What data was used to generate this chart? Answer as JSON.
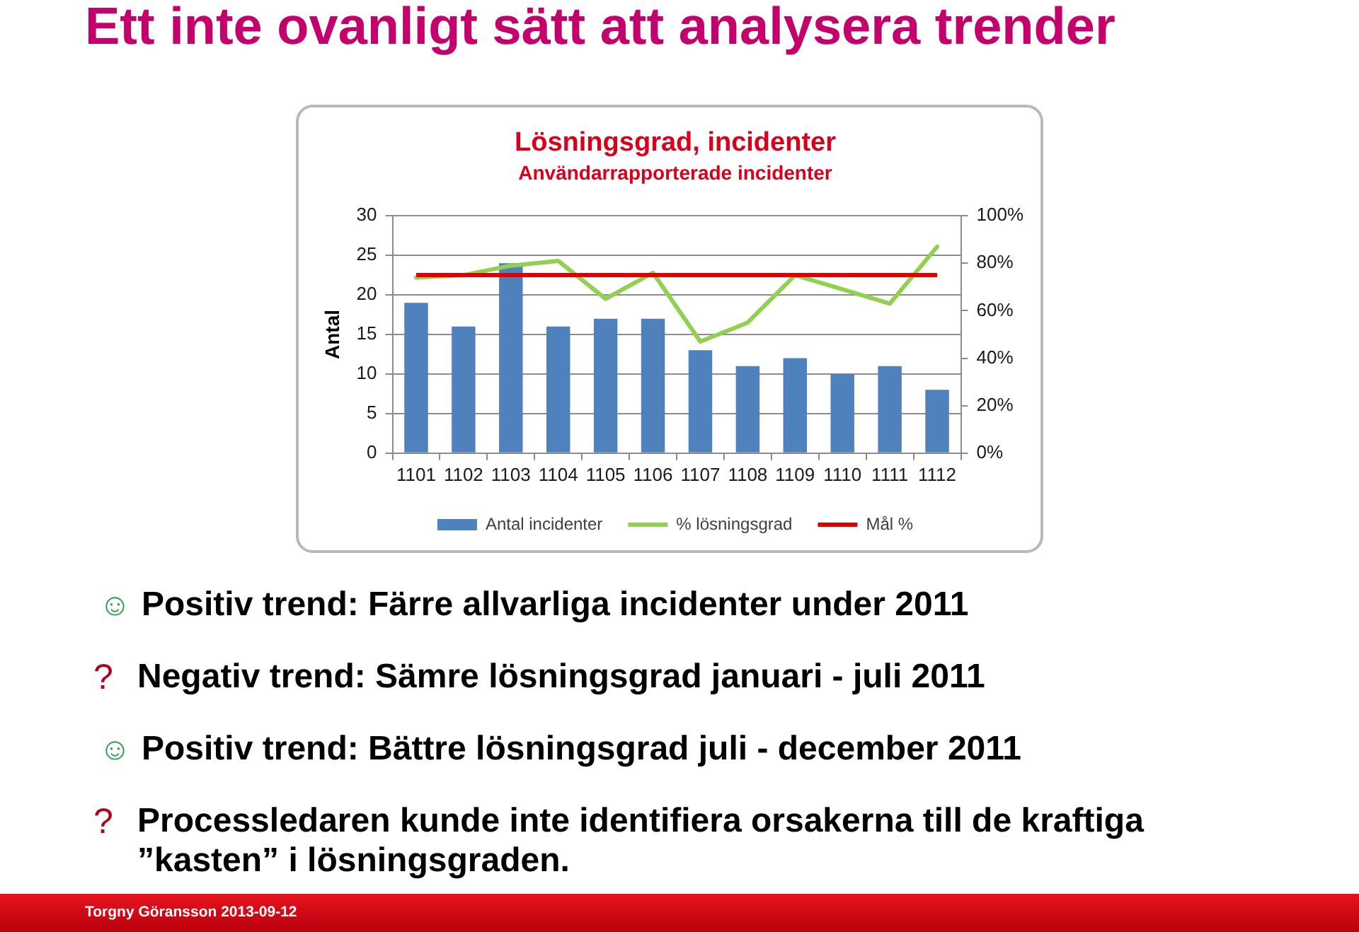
{
  "chart_data": {
    "type": "bar",
    "title": "Lösningsgrad, incidenter",
    "subtitle": "Användarrapporterade incidenter",
    "ylabel": "Antal",
    "categories": [
      "1101",
      "1102",
      "1103",
      "1104",
      "1105",
      "1106",
      "1107",
      "1108",
      "1109",
      "1110",
      "1111",
      "1112"
    ],
    "series": [
      {
        "name": "Antal incidenter",
        "color": "#4f81bd",
        "values": [
          19,
          16,
          24,
          16,
          17,
          17,
          13,
          11,
          12,
          10,
          11,
          8
        ]
      },
      {
        "name": "% lösningsgrad",
        "type": "line",
        "axis": "y2",
        "color": "#92d050",
        "values": [
          74,
          75,
          79,
          81,
          65,
          76,
          47,
          55,
          75,
          69,
          63,
          87
        ]
      }
    ],
    "ref_lines": [
      {
        "axis": "y2",
        "value": 75,
        "label": "Mål %",
        "color": "#e00000"
      }
    ],
    "ylim": [
      0,
      30
    ],
    "yticks": [
      0,
      5,
      10,
      15,
      20,
      25,
      30
    ],
    "y2lim": [
      0,
      100
    ],
    "y2ticks": [
      {
        "value": 0,
        "label": "0%"
      },
      {
        "value": 20,
        "label": "20%"
      },
      {
        "value": 40,
        "label": "40%"
      },
      {
        "value": 60,
        "label": "60%"
      },
      {
        "value": 80,
        "label": "80%"
      },
      {
        "value": 100,
        "label": "100%"
      }
    ],
    "grid": "y",
    "legend": "bottom",
    "marker": "none",
    "annotations": [
      "Ett inte ovanligt sätt att analysera trender",
      "☺ Positiv trend: Färre allvarliga incidenter under 2011",
      "? Negativ trend: Sämre lösningsgrad januari - juli 2011",
      "☺ Positiv trend: Bättre lösningsgrad juli - december 2011",
      "? Processledaren kunde inte identifiera orsakerna till de kraftiga ”kasten” i lösningsgraden.",
      "Torgny Göransson 2013-09-12"
    ]
  }
}
